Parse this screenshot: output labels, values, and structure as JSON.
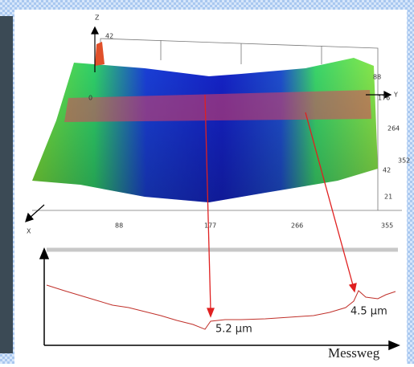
{
  "surface_plot": {
    "z_label": "Z",
    "z_top": "42",
    "zero_label": "0",
    "x_label": "X",
    "y_label": "Y",
    "x_ticks": [
      "88",
      "177",
      "266",
      "355"
    ],
    "y_ticks": [
      "88",
      "176",
      "264",
      "352"
    ],
    "z_ticks": [
      "42",
      "21"
    ]
  },
  "profile": {
    "annotations": [
      "5.2 µm",
      "4.5 µm"
    ],
    "axis_label": "Messweg"
  }
}
